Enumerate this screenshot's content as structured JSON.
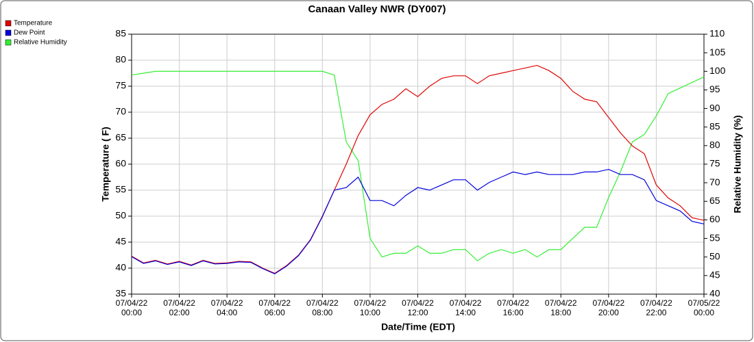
{
  "chart_data": {
    "type": "line",
    "title": "Canaan Valley NWR (DY007)",
    "xlabel": "Date/Time (EDT)",
    "ylabel": "Temperature ( F)",
    "y2label": "Relative Humidity (%)",
    "x": [
      "07/04/22 00:00",
      "07/04/22 00:30",
      "07/04/22 01:00",
      "07/04/22 01:30",
      "07/04/22 02:00",
      "07/04/22 02:30",
      "07/04/22 03:00",
      "07/04/22 03:30",
      "07/04/22 04:00",
      "07/04/22 04:30",
      "07/04/22 05:00",
      "07/04/22 05:30",
      "07/04/22 06:00",
      "07/04/22 06:30",
      "07/04/22 07:00",
      "07/04/22 07:30",
      "07/04/22 08:00",
      "07/04/22 08:30",
      "07/04/22 09:00",
      "07/04/22 09:30",
      "07/04/22 10:00",
      "07/04/22 10:30",
      "07/04/22 11:00",
      "07/04/22 11:30",
      "07/04/22 12:00",
      "07/04/22 12:30",
      "07/04/22 13:00",
      "07/04/22 13:30",
      "07/04/22 14:00",
      "07/04/22 14:30",
      "07/04/22 15:00",
      "07/04/22 15:30",
      "07/04/22 16:00",
      "07/04/22 16:30",
      "07/04/22 17:00",
      "07/04/22 17:30",
      "07/04/22 18:00",
      "07/04/22 18:30",
      "07/04/22 19:00",
      "07/04/22 19:30",
      "07/04/22 20:00",
      "07/04/22 20:30",
      "07/04/22 21:00",
      "07/04/22 21:30",
      "07/04/22 22:00",
      "07/04/22 22:30",
      "07/04/22 23:00",
      "07/04/22 23:30",
      "07/05/22 00:00"
    ],
    "series": [
      {
        "name": "Temperature",
        "color": "#e00000",
        "values": [
          42.3,
          41,
          41.5,
          40.8,
          41.3,
          40.6,
          41.5,
          40.9,
          41,
          41.3,
          41.2,
          40,
          39,
          40.5,
          42.5,
          45.5,
          50,
          55,
          60,
          65.5,
          69.5,
          71.5,
          72.5,
          74.5,
          73,
          75,
          76.5,
          77,
          77,
          75.5,
          77,
          77.5,
          78,
          78.5,
          79,
          78,
          76.5,
          74,
          72.5,
          72,
          69,
          66,
          63.5,
          62,
          56,
          53.5,
          52,
          49.7,
          49.2
        ]
      },
      {
        "name": "Dew Point",
        "color": "#0000dd",
        "values": [
          42.2,
          40.9,
          41.4,
          40.7,
          41.2,
          40.5,
          41.4,
          40.8,
          40.9,
          41.2,
          41.1,
          39.9,
          38.9,
          40.4,
          42.4,
          45.4,
          49.9,
          55,
          55.5,
          57.5,
          53,
          53,
          52,
          54,
          55.5,
          55,
          56,
          57,
          57,
          55,
          56.5,
          57.5,
          58.5,
          58,
          58.5,
          58,
          58,
          58,
          58.5,
          58.5,
          59,
          58,
          58,
          57,
          53,
          52,
          51,
          49,
          48.5
        ]
      },
      {
        "name": "Relative Humidity",
        "color": "#33ee33",
        "axis": "y2",
        "values": [
          99,
          99.5,
          100,
          100,
          100,
          100,
          100,
          100,
          100,
          100,
          100,
          100,
          100,
          100,
          100,
          100,
          100,
          99,
          81,
          76,
          55,
          50,
          51,
          51,
          53,
          51,
          51,
          52,
          52,
          49,
          51,
          52,
          51,
          52,
          50,
          52,
          52,
          55,
          58,
          58,
          66,
          73,
          81,
          83,
          88,
          94,
          95.5,
          97,
          98.5
        ]
      }
    ],
    "xlim": [
      "07/04/22 00:00",
      "07/05/22 00:00"
    ],
    "xticks": [
      "07/04/22 00:00",
      "07/04/22 02:00",
      "07/04/22 04:00",
      "07/04/22 06:00",
      "07/04/22 08:00",
      "07/04/22 10:00",
      "07/04/22 12:00",
      "07/04/22 14:00",
      "07/04/22 16:00",
      "07/04/22 18:00",
      "07/04/22 20:00",
      "07/04/22 22:00",
      "07/05/22 00:00"
    ],
    "ylim": [
      35,
      85
    ],
    "yticks": [
      35,
      40,
      45,
      50,
      55,
      60,
      65,
      70,
      75,
      80,
      85
    ],
    "y2lim": [
      40,
      110
    ],
    "y2ticks": [
      40,
      45,
      50,
      55,
      60,
      65,
      70,
      75,
      80,
      85,
      90,
      95,
      100,
      105,
      110
    ],
    "grid": true,
    "legend": "top-left"
  }
}
